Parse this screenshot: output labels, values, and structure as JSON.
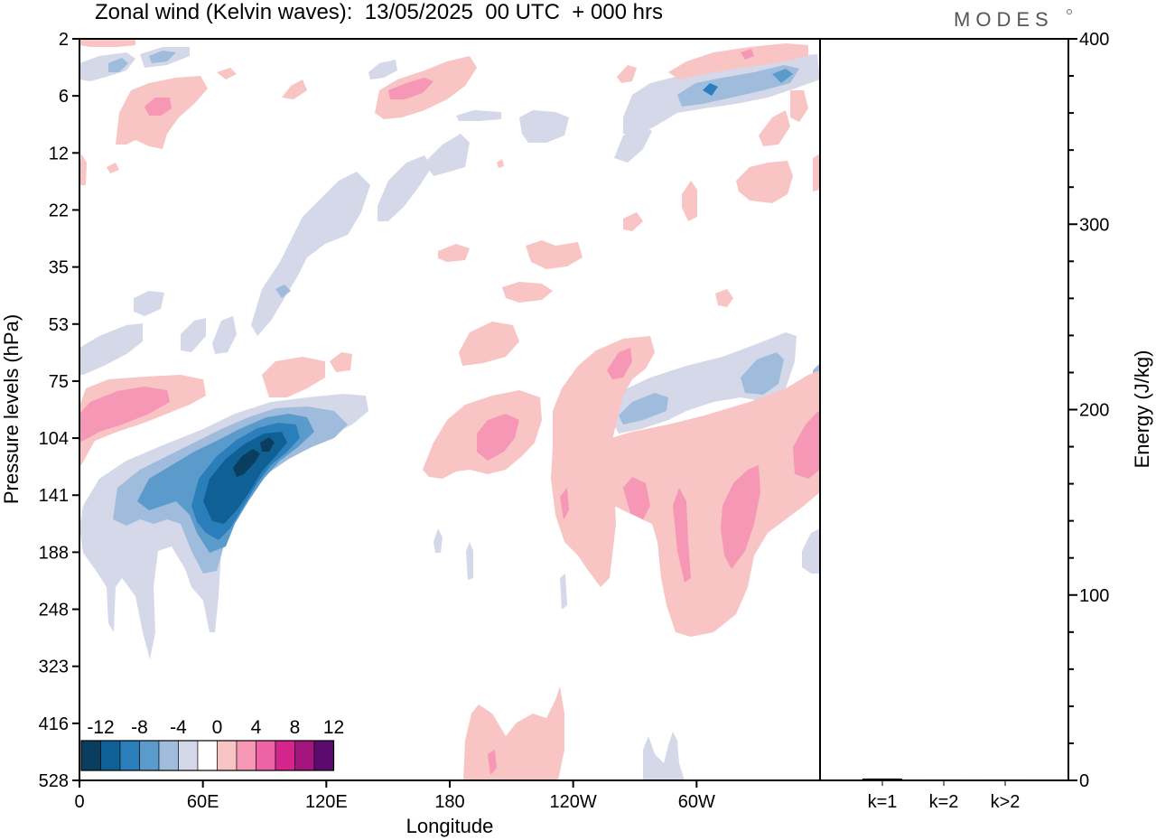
{
  "header": {
    "title": "Zonal wind (Kelvin waves):  13/05/2025  00 UTC  + 000 hrs",
    "logo": "MODES"
  },
  "chart_data": [
    {
      "type": "heatmap",
      "title": "Zonal wind (Kelvin waves):  13/05/2025  00 UTC  + 000 hrs",
      "xlabel": "Longitude",
      "ylabel": "Pressure levels (hPa)",
      "x_ticks": [
        "0",
        "60E",
        "120E",
        "180",
        "120W",
        "60W"
      ],
      "y_ticks": [
        "2",
        "6",
        "12",
        "22",
        "35",
        "53",
        "75",
        "104",
        "141",
        "188",
        "248",
        "323",
        "416",
        "528"
      ],
      "y_scale": "log-pressure (inverted)",
      "colorbar": {
        "tick_labels": [
          "-12",
          "-8",
          "-4",
          "0",
          "4",
          "8",
          "12"
        ],
        "levels": [
          -14,
          -12,
          -10,
          -8,
          -6,
          -4,
          -2,
          2,
          4,
          6,
          8,
          10,
          12,
          14
        ],
        "colors": [
          "#0b3d5e",
          "#0f6094",
          "#2a7fbb",
          "#5b9bcc",
          "#9fbcdc",
          "#d4d8e8",
          "#ffffff",
          "#f8c4c4",
          "#f597b5",
          "#ee63a6",
          "#d4258c",
          "#a3147c",
          "#5b0a6e"
        ]
      },
      "features": [
        {
          "sign": "negative",
          "peak": -14,
          "longitude": "60E-100E",
          "pressure_hPa": "100-200"
        },
        {
          "sign": "positive",
          "peak": 6,
          "longitude": "0-40E",
          "pressure_hPa": "75-104"
        },
        {
          "sign": "positive",
          "peak": 6,
          "longitude": "120W-60W",
          "pressure_hPa": "104-248"
        },
        {
          "sign": "negative",
          "peak": -6,
          "longitude": "100W-10W",
          "pressure_hPa": "53-104"
        },
        {
          "sign": "negative",
          "peak": -8,
          "longitude": "110W-40W",
          "pressure_hPa": "4-8"
        }
      ]
    },
    {
      "type": "bar",
      "categories": [
        "k=1",
        "k=2",
        "k>2"
      ],
      "values": [
        1,
        0.5,
        0.5
      ],
      "ylabel": "Energy (J/kg)",
      "ylim": [
        0,
        400
      ],
      "y_ticks": [
        "0",
        "100",
        "200",
        "300",
        "400"
      ]
    }
  ]
}
